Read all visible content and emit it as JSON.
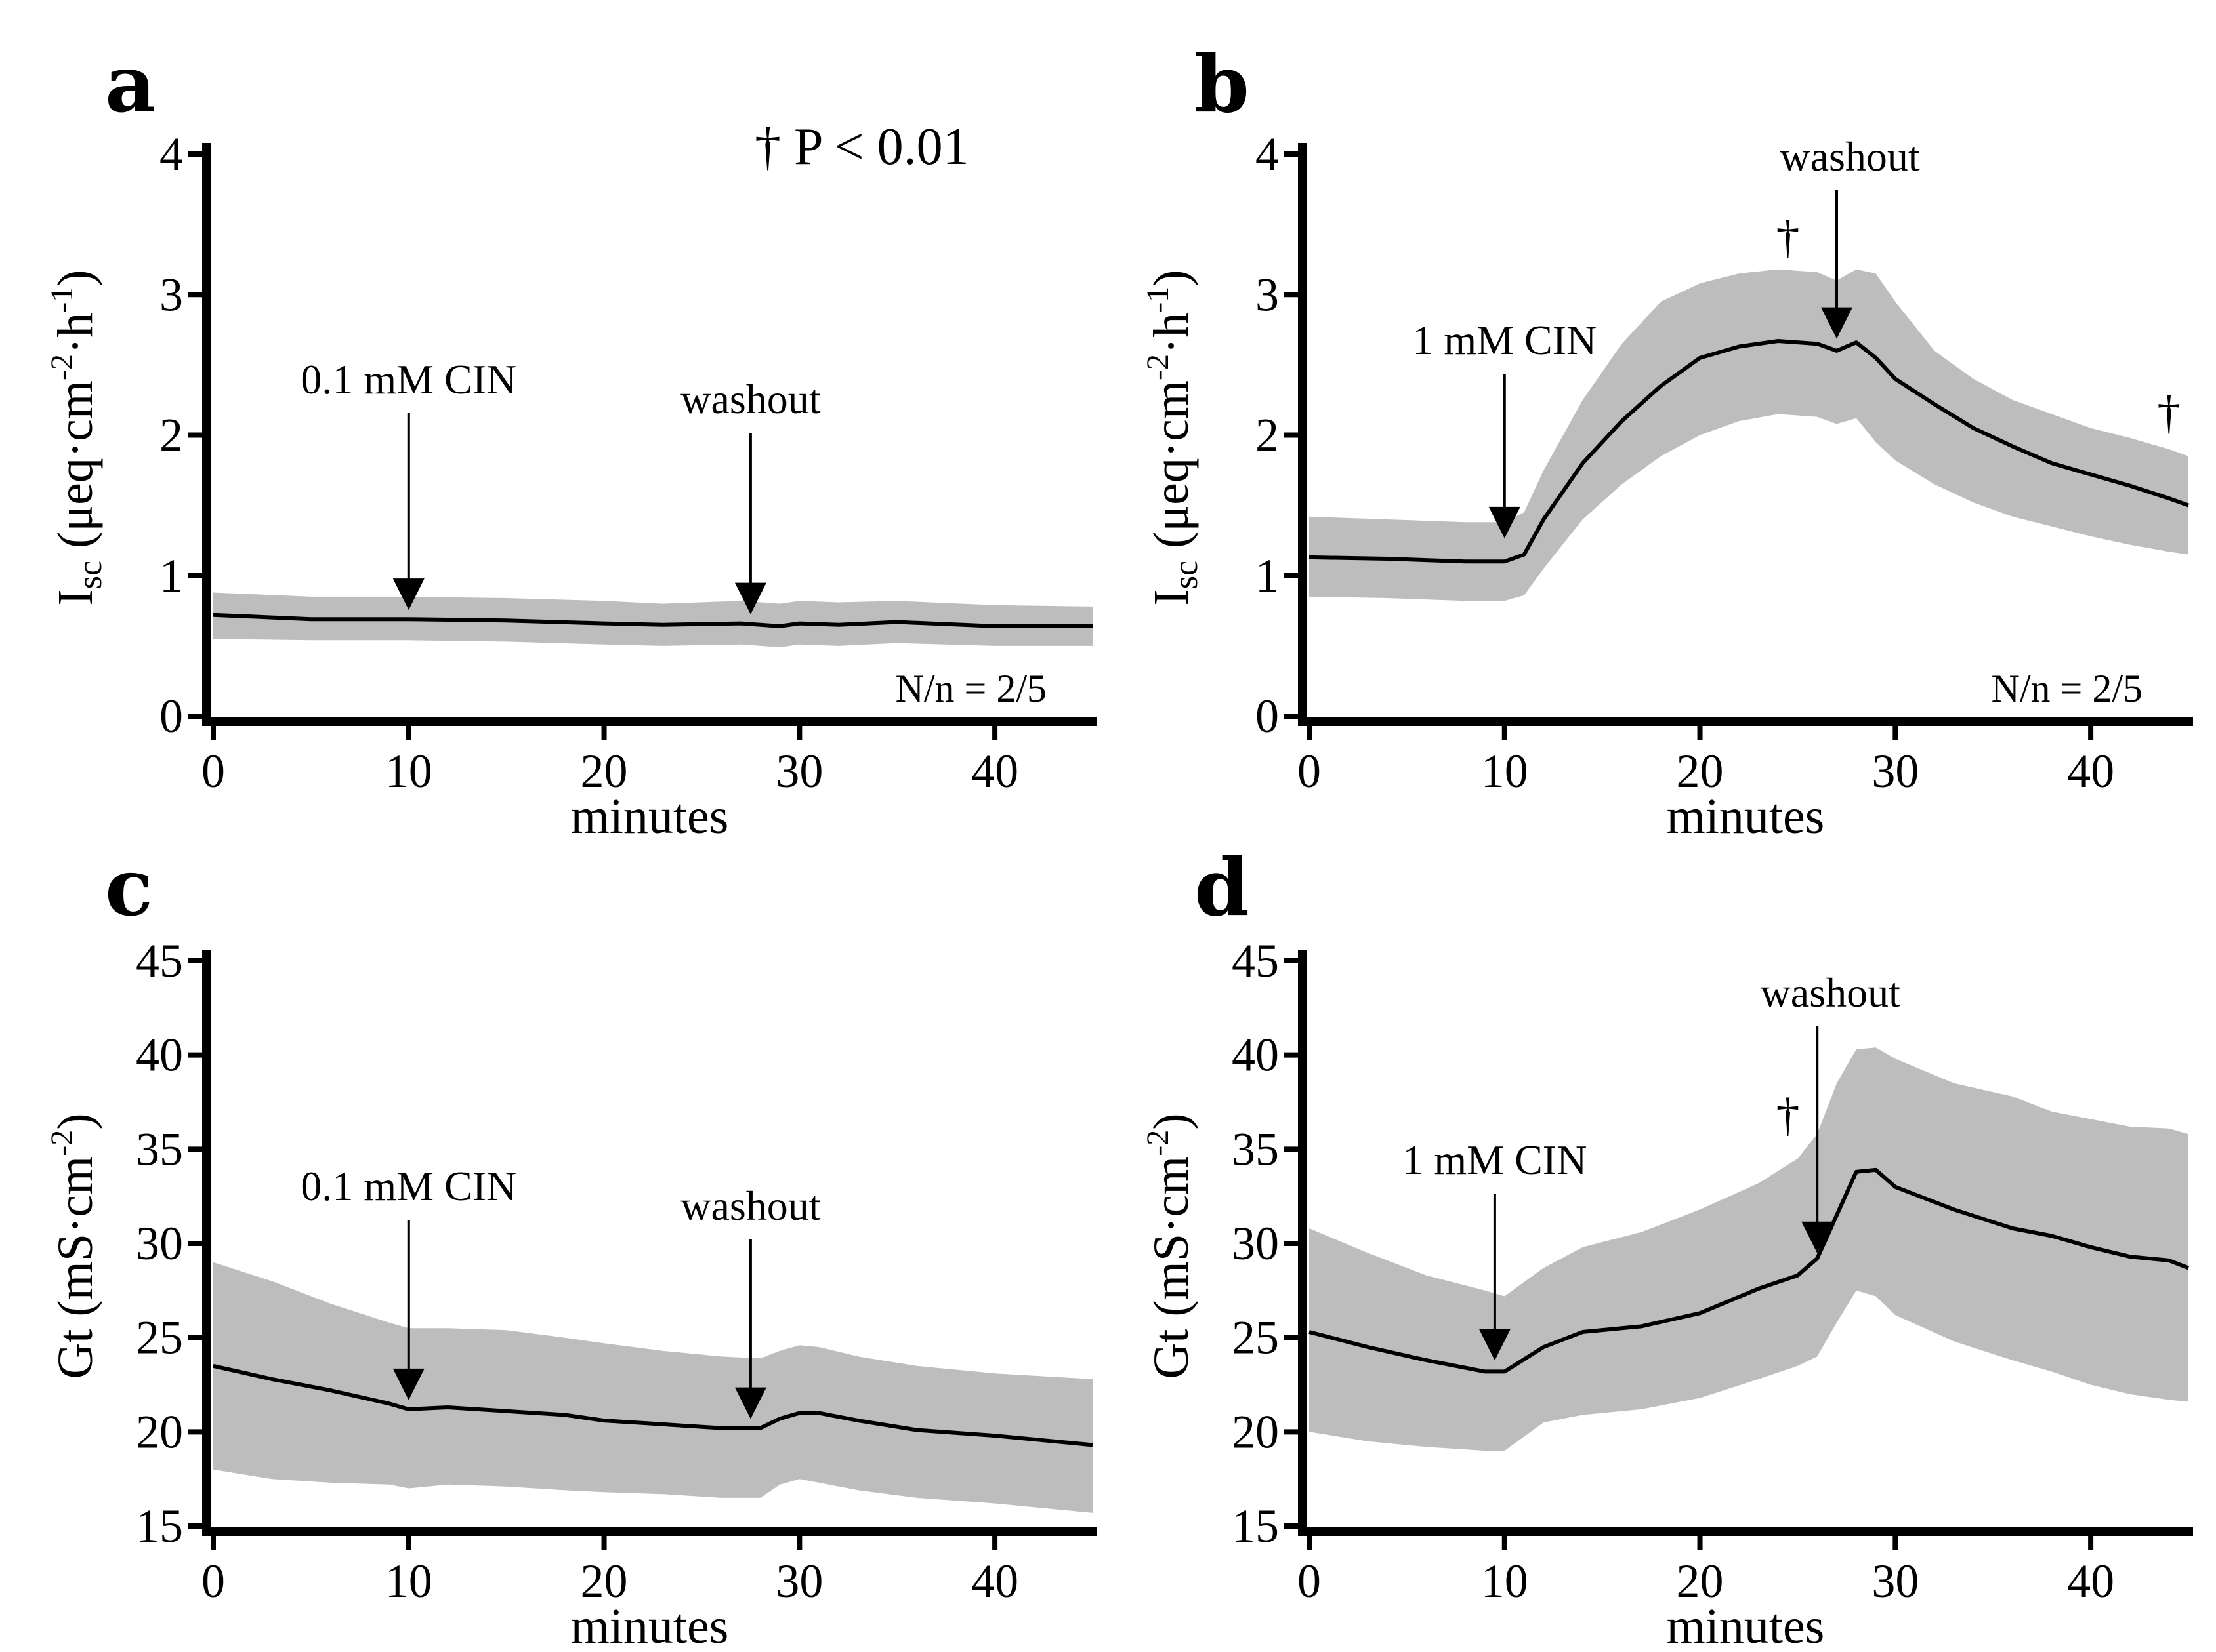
{
  "significance_note": {
    "symbol": "†",
    "text": "P < 0.01"
  },
  "chart_data": [
    {
      "id": "a",
      "letter": "a",
      "type": "area",
      "xlabel": "minutes",
      "ylabel_main": "I",
      "ylabel_sub": "sc",
      "ylabel_rest": "(μeq·cm",
      "ylabel_sup1": "-2",
      "ylabel_mid": "·h",
      "ylabel_sup2": "-1",
      "ylabel_end": ")",
      "xlim": [
        0,
        45
      ],
      "ylim": [
        0,
        4
      ],
      "xticks": [
        0,
        10,
        20,
        30,
        40
      ],
      "xtick_labels": [
        "0",
        "10",
        "20",
        "30",
        "40"
      ],
      "yticks": [
        0,
        1,
        2,
        3,
        4
      ],
      "ytick_labels": [
        "0",
        "1",
        "2",
        "3",
        "4"
      ],
      "x": [
        0,
        5,
        10,
        15,
        20,
        23,
        27,
        29,
        30,
        32,
        35,
        40,
        45
      ],
      "mean": [
        0.72,
        0.69,
        0.69,
        0.68,
        0.66,
        0.65,
        0.66,
        0.64,
        0.66,
        0.65,
        0.67,
        0.64,
        0.64
      ],
      "upper": [
        0.88,
        0.85,
        0.85,
        0.84,
        0.82,
        0.8,
        0.82,
        0.8,
        0.82,
        0.81,
        0.82,
        0.79,
        0.78
      ],
      "lower": [
        0.55,
        0.54,
        0.54,
        0.53,
        0.51,
        0.5,
        0.51,
        0.49,
        0.51,
        0.5,
        0.52,
        0.5,
        0.5
      ],
      "annotations": [
        {
          "label": "0.1 mM CIN",
          "x": 10,
          "y": 0.69
        },
        {
          "label": "washout",
          "x": 27.5,
          "y": 0.66
        }
      ],
      "significance_marks": [],
      "n_label": "N/n = 2/5"
    },
    {
      "id": "b",
      "letter": "b",
      "type": "area",
      "xlabel": "minutes",
      "ylabel_main": "I",
      "ylabel_sub": "sc",
      "ylabel_rest": "(μeq·cm",
      "ylabel_sup1": "-2",
      "ylabel_mid": "·h",
      "ylabel_sup2": "-1",
      "ylabel_end": ")",
      "xlim": [
        0,
        45
      ],
      "ylim": [
        0,
        4
      ],
      "xticks": [
        0,
        10,
        20,
        30,
        40
      ],
      "xtick_labels": [
        "0",
        "10",
        "20",
        "30",
        "40"
      ],
      "yticks": [
        0,
        1,
        2,
        3,
        4
      ],
      "ytick_labels": [
        "0",
        "1",
        "2",
        "3",
        "4"
      ],
      "x": [
        0,
        4,
        8,
        10,
        11,
        12,
        14,
        16,
        18,
        20,
        22,
        24,
        26,
        27,
        28,
        29,
        30,
        32,
        34,
        36,
        38,
        40,
        42,
        44,
        45
      ],
      "mean": [
        1.13,
        1.12,
        1.1,
        1.1,
        1.15,
        1.4,
        1.8,
        2.1,
        2.35,
        2.55,
        2.63,
        2.67,
        2.65,
        2.6,
        2.66,
        2.55,
        2.4,
        2.22,
        2.05,
        1.92,
        1.8,
        1.72,
        1.64,
        1.55,
        1.5
      ],
      "upper": [
        1.42,
        1.4,
        1.38,
        1.38,
        1.45,
        1.75,
        2.25,
        2.65,
        2.95,
        3.08,
        3.15,
        3.18,
        3.16,
        3.1,
        3.18,
        3.15,
        2.95,
        2.6,
        2.4,
        2.25,
        2.15,
        2.05,
        1.98,
        1.9,
        1.85
      ],
      "lower": [
        0.85,
        0.84,
        0.82,
        0.82,
        0.86,
        1.05,
        1.4,
        1.65,
        1.85,
        2.0,
        2.1,
        2.15,
        2.13,
        2.08,
        2.12,
        1.95,
        1.82,
        1.65,
        1.52,
        1.42,
        1.35,
        1.28,
        1.22,
        1.17,
        1.15
      ],
      "annotations": [
        {
          "label": "1 mM CIN",
          "x": 10,
          "y": 1.2
        },
        {
          "label": "washout",
          "x": 27,
          "y": 2.62
        }
      ],
      "significance_marks": [
        {
          "symbol": "†",
          "x": 24.5,
          "y": 3.3
        },
        {
          "symbol": "†",
          "x": 44,
          "y": 2.05
        }
      ],
      "n_label": "N/n = 2/5"
    },
    {
      "id": "c",
      "letter": "c",
      "type": "area",
      "xlabel": "minutes",
      "ylabel_main": "Gt (mS·cm",
      "ylabel_sup1": "-2",
      "ylabel_end": ")",
      "xlim": [
        0,
        45
      ],
      "ylim": [
        15,
        45
      ],
      "xticks": [
        0,
        10,
        20,
        30,
        40
      ],
      "xtick_labels": [
        "0",
        "10",
        "20",
        "30",
        "40"
      ],
      "yticks": [
        15,
        20,
        25,
        30,
        35,
        40,
        45
      ],
      "ytick_labels": [
        "15",
        "20",
        "25",
        "30",
        "35",
        "40",
        "45"
      ],
      "x": [
        0,
        3,
        6,
        9,
        10,
        12,
        15,
        18,
        20,
        23,
        26,
        28,
        29,
        30,
        31,
        33,
        36,
        40,
        45
      ],
      "mean": [
        23.5,
        22.8,
        22.2,
        21.5,
        21.2,
        21.3,
        21.1,
        20.9,
        20.6,
        20.4,
        20.2,
        20.2,
        20.7,
        21.0,
        21.0,
        20.6,
        20.1,
        19.8,
        19.3
      ],
      "upper": [
        29.0,
        28.0,
        26.8,
        25.8,
        25.5,
        25.5,
        25.4,
        25.0,
        24.7,
        24.3,
        24.0,
        23.9,
        24.3,
        24.6,
        24.5,
        24.0,
        23.5,
        23.1,
        22.8
      ],
      "lower": [
        18.0,
        17.5,
        17.3,
        17.2,
        17.0,
        17.2,
        17.1,
        16.9,
        16.8,
        16.7,
        16.5,
        16.5,
        17.2,
        17.5,
        17.3,
        16.9,
        16.5,
        16.2,
        15.7
      ],
      "annotations": [
        {
          "label": "0.1 mM CIN",
          "x": 10,
          "y": 21.2
        },
        {
          "label": "washout",
          "x": 27.5,
          "y": 20.2
        }
      ],
      "significance_marks": [],
      "n_label": ""
    },
    {
      "id": "d",
      "letter": "d",
      "type": "area",
      "xlabel": "minutes",
      "ylabel_main": "Gt (mS·cm",
      "ylabel_sup1": "-2",
      "ylabel_end": ")",
      "xlim": [
        0,
        45
      ],
      "ylim": [
        15,
        45
      ],
      "xticks": [
        0,
        10,
        20,
        30,
        40
      ],
      "xtick_labels": [
        "0",
        "10",
        "20",
        "30",
        "40"
      ],
      "yticks": [
        15,
        20,
        25,
        30,
        35,
        40,
        45
      ],
      "ytick_labels": [
        "15",
        "20",
        "25",
        "30",
        "35",
        "40",
        "45"
      ],
      "x": [
        0,
        3,
        6,
        9,
        10,
        12,
        14,
        17,
        20,
        23,
        25,
        26,
        27,
        28,
        29,
        30,
        33,
        36,
        38,
        40,
        42,
        44,
        45
      ],
      "mean": [
        25.3,
        24.5,
        23.8,
        23.2,
        23.2,
        24.5,
        25.3,
        25.6,
        26.3,
        27.6,
        28.3,
        29.2,
        31.5,
        33.8,
        33.9,
        33.0,
        31.8,
        30.8,
        30.4,
        29.8,
        29.3,
        29.1,
        28.7
      ],
      "upper": [
        30.8,
        29.5,
        28.3,
        27.5,
        27.2,
        28.7,
        29.8,
        30.6,
        31.8,
        33.2,
        34.5,
        35.8,
        38.5,
        40.3,
        40.4,
        39.8,
        38.5,
        37.8,
        37.0,
        36.6,
        36.2,
        36.1,
        35.8
      ],
      "lower": [
        20.0,
        19.5,
        19.2,
        19.0,
        19.0,
        20.5,
        20.9,
        21.2,
        21.8,
        22.8,
        23.5,
        24.0,
        25.8,
        27.5,
        27.2,
        26.2,
        24.8,
        23.8,
        23.2,
        22.5,
        22.0,
        21.7,
        21.6
      ],
      "annotations": [
        {
          "label": "1 mM CIN",
          "x": 9.5,
          "y": 23.3
        },
        {
          "label": "washout",
          "x": 26,
          "y": 29.0
        }
      ],
      "significance_marks": [
        {
          "symbol": "†",
          "x": 24.5,
          "y": 36.0
        }
      ],
      "n_label": ""
    }
  ]
}
